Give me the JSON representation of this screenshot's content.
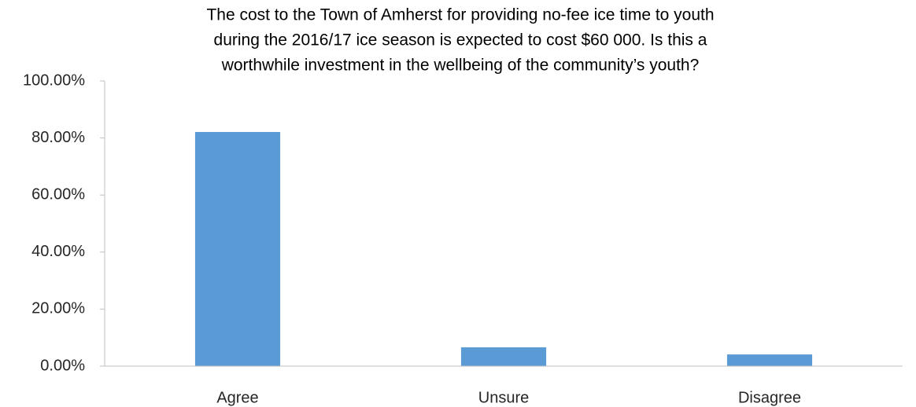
{
  "chart_data": {
    "type": "bar",
    "title": [
      "The cost to the Town of Amherst for providing no-fee ice time to youth",
      "during the 2016/17 ice season is expected to cost $60 000. Is this a",
      "worthwhile investment in the wellbeing of the community’s youth?"
    ],
    "categories": [
      "Agree",
      "Unsure",
      "Disagree"
    ],
    "values": [
      82.1,
      6.6,
      4.1
    ],
    "color": "#5b9bd5",
    "ylim": [
      0,
      100
    ],
    "yticks": [
      {
        "value": 0,
        "label": "0.00%"
      },
      {
        "value": 20,
        "label": "20.00%"
      },
      {
        "value": 40,
        "label": "40.00%"
      },
      {
        "value": 60,
        "label": "60.00%"
      },
      {
        "value": 80,
        "label": "80.00%"
      },
      {
        "value": 100,
        "label": "100.00%"
      }
    ],
    "grid": false
  }
}
